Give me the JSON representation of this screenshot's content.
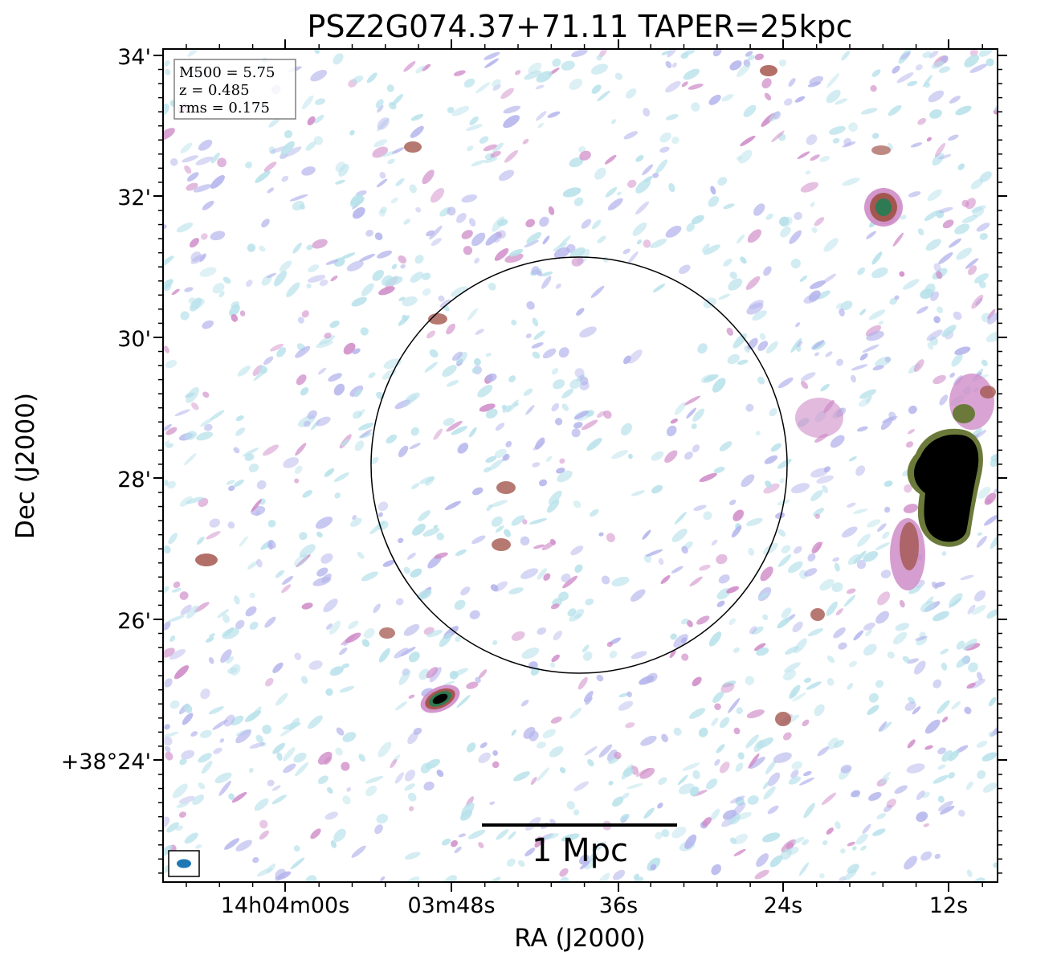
{
  "title": "PSZ2G074.37+71.11 TAPER=25kpc",
  "info_box": {
    "m500": "M500 = 5.75",
    "z": "z = 0.485",
    "rms": "rms = 0.175"
  },
  "axes": {
    "xlabel": "RA (J2000)",
    "ylabel": "Dec (J2000)",
    "x_ticks": [
      "14h04m00s",
      "03m48s",
      "36s",
      "24s",
      "12s"
    ],
    "y_ticks": [
      "34'",
      "32'",
      "30'",
      "28'",
      "26'",
      "+38°24'"
    ]
  },
  "scale_bar": {
    "label": "1 Mpc"
  },
  "colors": {
    "low_emission_cyan": "#b7e1ea",
    "low_emission_violet": "#b4b4ec",
    "mid_emission_pink": "#cf8cc8",
    "high_emission_brown": "#a4574f",
    "peak_green": "#2e7a52",
    "saturated_black": "#000000",
    "beam_blue": "#1f77b4"
  }
}
